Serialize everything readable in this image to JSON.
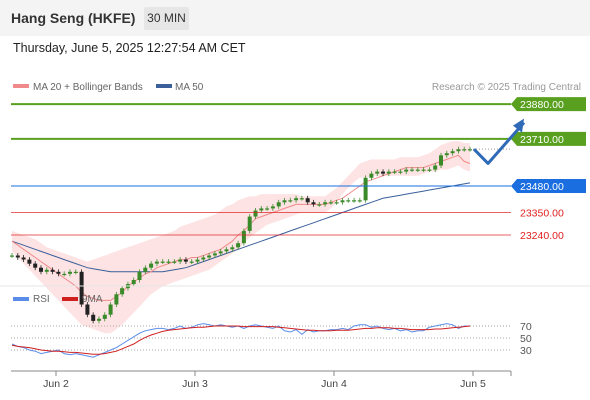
{
  "header": {
    "title": "Hang Seng (HKFE)",
    "timeframe": "30 MIN"
  },
  "datetime": "Thursday, June 5, 2025 12:27:54 AM CET",
  "copyright": "Research © 2025 Trading Central",
  "colors": {
    "bb_fill": "#fddcdc",
    "ma20": "#f08a8a",
    "ma50": "#3a5f9a",
    "target": "#5aa020",
    "pivot": "#1a6ee0",
    "support": "#e02020",
    "candle_up": "#3a8a2a",
    "candle_down": "#222222",
    "arrow": "#2e6ab8",
    "rsi": "#5a8de8",
    "rsi_ma": "#d01f1f"
  },
  "chart_data": [
    {
      "type": "line",
      "title": "",
      "instrument": "Hang Seng (HKFE)",
      "interval": "30 MIN",
      "legend": [
        {
          "key": "ma20",
          "label": "MA 20 + Bollinger Bands"
        },
        {
          "key": "ma50",
          "label": "MA 50"
        }
      ],
      "legend_position": "top-left",
      "x_labels": [
        "Jun 2",
        "Jun 3",
        "Jun 4",
        "Jun 5"
      ],
      "ylim": [
        23020,
        23920
      ],
      "levels": [
        {
          "value": 23880,
          "label": "23880.00",
          "kind": "target"
        },
        {
          "value": 23710,
          "label": "23710.00",
          "kind": "target"
        },
        {
          "value": 23480,
          "label": "23480.00",
          "kind": "pivot"
        },
        {
          "value": 23350,
          "label": "23350.00",
          "kind": "support"
        },
        {
          "value": 23240,
          "label": "23240.00",
          "kind": "support"
        }
      ],
      "price": [
        23140,
        23130,
        23120,
        23100,
        23080,
        23060,
        23070,
        23060,
        23050,
        23050,
        23060,
        23060,
        22900,
        22850,
        22820,
        22830,
        22850,
        22900,
        22950,
        22980,
        23000,
        23020,
        23060,
        23080,
        23100,
        23110,
        23110,
        23110,
        23110,
        23120,
        23110,
        23110,
        23120,
        23130,
        23140,
        23150,
        23160,
        23170,
        23180,
        23200,
        23260,
        23330,
        23360,
        23370,
        23370,
        23380,
        23400,
        23410,
        23410,
        23420,
        23420,
        23400,
        23390,
        23390,
        23400,
        23400,
        23400,
        23410,
        23410,
        23410,
        23410,
        23520,
        23540,
        23550,
        23540,
        23550,
        23550,
        23550,
        23560,
        23560,
        23560,
        23560,
        23560,
        23580,
        23630,
        23640,
        23650,
        23660,
        23660,
        23660
      ],
      "ma20": [
        23210,
        23190,
        23170,
        23150,
        23130,
        23110,
        23090,
        23070,
        23050,
        23030,
        23010,
        22990,
        22960,
        22940,
        22930,
        22920,
        22920,
        22920,
        22940,
        22960,
        22990,
        23010,
        23030,
        23050,
        23060,
        23080,
        23090,
        23100,
        23110,
        23120,
        23120,
        23130,
        23130,
        23140,
        23150,
        23160,
        23170,
        23190,
        23210,
        23240,
        23260,
        23290,
        23320,
        23330,
        23340,
        23350,
        23360,
        23370,
        23380,
        23390,
        23390,
        23390,
        23390,
        23390,
        23390,
        23400,
        23410,
        23420,
        23440,
        23460,
        23480,
        23500,
        23510,
        23520,
        23530,
        23540,
        23550,
        23560,
        23570,
        23570,
        23570,
        23570,
        23580,
        23590,
        23600,
        23610,
        23620,
        23630,
        23600,
        23590
      ],
      "bb_upper": [
        23260,
        23250,
        23240,
        23230,
        23220,
        23200,
        23180,
        23170,
        23160,
        23150,
        23140,
        23130,
        23120,
        23110,
        23120,
        23130,
        23140,
        23150,
        23160,
        23170,
        23180,
        23190,
        23200,
        23210,
        23220,
        23230,
        23240,
        23250,
        23260,
        23280,
        23290,
        23300,
        23310,
        23320,
        23330,
        23340,
        23360,
        23380,
        23390,
        23410,
        23420,
        23430,
        23430,
        23440,
        23440,
        23440,
        23440,
        23440,
        23440,
        23440,
        23430,
        23430,
        23430,
        23430,
        23430,
        23450,
        23470,
        23500,
        23530,
        23560,
        23590,
        23600,
        23610,
        23610,
        23610,
        23610,
        23610,
        23620,
        23620,
        23620,
        23620,
        23630,
        23640,
        23660,
        23680,
        23690,
        23700,
        23700,
        23690,
        23690
      ],
      "bb_lower": [
        23160,
        23130,
        23100,
        23070,
        23040,
        23010,
        22980,
        22950,
        22920,
        22890,
        22860,
        22830,
        22800,
        22790,
        22780,
        22770,
        22760,
        22760,
        22780,
        22800,
        22830,
        22860,
        22890,
        22920,
        22950,
        22970,
        22990,
        23000,
        23010,
        23020,
        23030,
        23040,
        23050,
        23060,
        23070,
        23090,
        23110,
        23130,
        23150,
        23170,
        23200,
        23230,
        23250,
        23270,
        23290,
        23300,
        23310,
        23320,
        23330,
        23340,
        23350,
        23350,
        23350,
        23350,
        23350,
        23370,
        23400,
        23440,
        23470,
        23500,
        23520,
        23520,
        23530,
        23530,
        23530,
        23530,
        23530,
        23530,
        23530,
        23530,
        23530,
        23540,
        23550,
        23550,
        23560,
        23560,
        23570,
        23580,
        23560,
        23550
      ],
      "ma50": [
        23210,
        23200,
        23190,
        23180,
        23170,
        23160,
        23150,
        23140,
        23130,
        23120,
        23110,
        23100,
        23090,
        23080,
        23075,
        23070,
        23065,
        23060,
        23060,
        23060,
        23060,
        23060,
        23060,
        23060,
        23060,
        23060,
        23060,
        23065,
        23070,
        23075,
        23080,
        23090,
        23100,
        23110,
        23120,
        23130,
        23140,
        23150,
        23160,
        23170,
        23180,
        23190,
        23200,
        23210,
        23220,
        23230,
        23240,
        23250,
        23260,
        23270,
        23280,
        23290,
        23300,
        23310,
        23320,
        23330,
        23340,
        23350,
        23360,
        23370,
        23380,
        23390,
        23400,
        23410,
        23420,
        23425,
        23430,
        23435,
        23440,
        23445,
        23450,
        23455,
        23460,
        23465,
        23470,
        23475,
        23480,
        23485,
        23490,
        23495
      ],
      "forecast": [
        23660,
        23590,
        23790
      ]
    },
    {
      "type": "line",
      "title": "",
      "legend": [
        {
          "key": "rsi",
          "label": "RSI"
        },
        {
          "key": "rsi_ma",
          "label": "9MA"
        }
      ],
      "legend_position": "top-left",
      "y_ticks": [
        70,
        50,
        30
      ],
      "ylim": [
        10,
        90
      ],
      "rsi": [
        40,
        36,
        34,
        30,
        28,
        24,
        26,
        28,
        30,
        24,
        22,
        24,
        22,
        20,
        18,
        22,
        26,
        30,
        34,
        40,
        46,
        52,
        58,
        62,
        64,
        66,
        66,
        64,
        66,
        70,
        66,
        68,
        72,
        74,
        72,
        70,
        72,
        70,
        68,
        70,
        66,
        70,
        72,
        70,
        68,
        66,
        70,
        62,
        60,
        64,
        56,
        64,
        60,
        62,
        62,
        64,
        64,
        66,
        64,
        70,
        72,
        72,
        68,
        70,
        66,
        64,
        66,
        62,
        64,
        60,
        62,
        62,
        68,
        70,
        72,
        74,
        72,
        66,
        70,
        70
      ],
      "rsi_ma": [
        38,
        36,
        35,
        34,
        32,
        30,
        29,
        28,
        28,
        27,
        26,
        26,
        25,
        24,
        23,
        23,
        24,
        26,
        28,
        32,
        36,
        40,
        46,
        51,
        55,
        58,
        61,
        63,
        64,
        65,
        66,
        67,
        68,
        68,
        69,
        70,
        70,
        70,
        70,
        70,
        69,
        69,
        69,
        69,
        69,
        69,
        68,
        67,
        66,
        65,
        64,
        63,
        63,
        62,
        62,
        62,
        63,
        63,
        63,
        64,
        65,
        66,
        66,
        67,
        67,
        67,
        66,
        66,
        65,
        64,
        64,
        64,
        64,
        65,
        65,
        66,
        67,
        68,
        69,
        70
      ]
    }
  ]
}
